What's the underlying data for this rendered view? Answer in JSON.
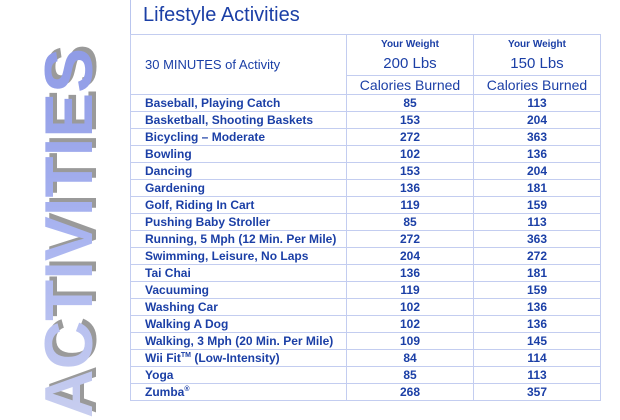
{
  "page": {
    "title": "Lifestyle Activities",
    "side_word": "ACTIVITIES"
  },
  "table": {
    "activity_header": "30 MINUTES of Activity",
    "columns": [
      {
        "weight_label": "Your Weight",
        "weight_value": "200 Lbs",
        "metric_label": "Calories Burned"
      },
      {
        "weight_label": "Your Weight",
        "weight_value": "150 Lbs",
        "metric_label": "Calories Burned"
      }
    ],
    "rows": [
      {
        "activity": "Baseball, Playing Catch",
        "cal_200": "85",
        "cal_150": "113"
      },
      {
        "activity": "Basketball, Shooting Baskets",
        "cal_200": "153",
        "cal_150": "204"
      },
      {
        "activity": "Bicycling – Moderate",
        "cal_200": "272",
        "cal_150": "363"
      },
      {
        "activity": "Bowling",
        "cal_200": "102",
        "cal_150": "136"
      },
      {
        "activity": "Dancing",
        "cal_200": "153",
        "cal_150": "204"
      },
      {
        "activity": "Gardening",
        "cal_200": "136",
        "cal_150": "181"
      },
      {
        "activity": "Golf, Riding In Cart",
        "cal_200": "119",
        "cal_150": "159"
      },
      {
        "activity": "Pushing Baby Stroller",
        "cal_200": "85",
        "cal_150": "113"
      },
      {
        "activity": "Running, 5 Mph (12 Min. Per Mile)",
        "cal_200": "272",
        "cal_150": "363"
      },
      {
        "activity": "Swimming, Leisure, No Laps",
        "cal_200": "204",
        "cal_150": "272"
      },
      {
        "activity": "Tai Chai",
        "cal_200": "136",
        "cal_150": "181"
      },
      {
        "activity": "Vacuuming",
        "cal_200": "119",
        "cal_150": "159"
      },
      {
        "activity": "Washing Car",
        "cal_200": "102",
        "cal_150": "136"
      },
      {
        "activity": "Walking A Dog",
        "cal_200": "102",
        "cal_150": "136"
      },
      {
        "activity": "Walking, 3 Mph (20 Min. Per Mile)",
        "cal_200": "109",
        "cal_150": "145"
      },
      {
        "activity": "Wii Fit",
        "activity_suffix": "(Low-Intensity)",
        "activity_mark": "TM",
        "cal_200": "84",
        "cal_150": "114"
      },
      {
        "activity": "Yoga",
        "cal_200": "85",
        "cal_150": "113"
      },
      {
        "activity": "Zumba",
        "activity_mark": "®",
        "cal_200": "268",
        "cal_150": "357"
      }
    ]
  },
  "colors": {
    "text_blue": "#1b3fa6",
    "grid_line": "#c3cdf0",
    "side_word_fill": "#a9b4f0",
    "side_word_shadow": "#9a9a9a"
  }
}
